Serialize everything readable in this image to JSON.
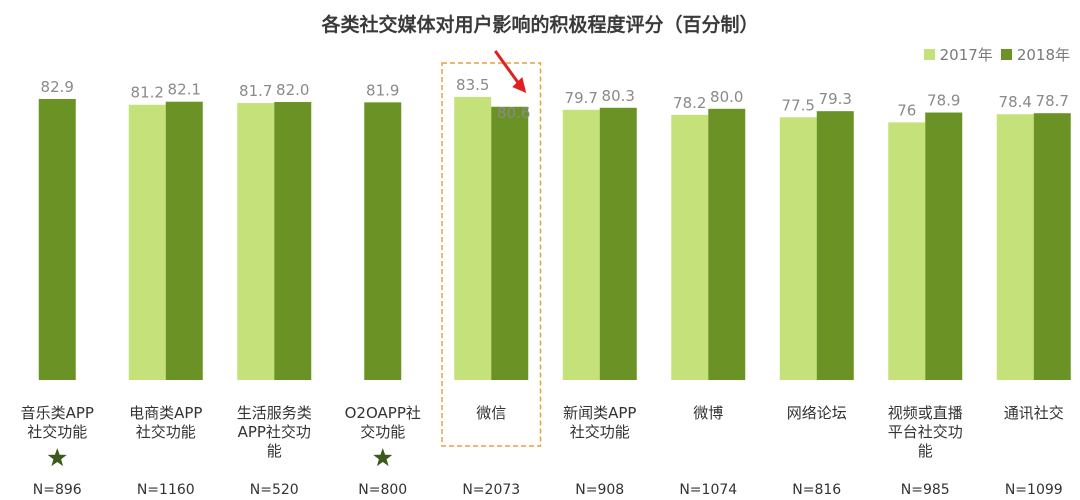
{
  "chart_data": {
    "type": "bar",
    "title": "各类社交媒体对用户影响的积极程度评分（百分制）",
    "xlabel": "",
    "ylabel": "",
    "ylim": [
      0,
      100
    ],
    "grid": false,
    "legend_placement": "top-right",
    "categories": [
      {
        "lines": [
          "音乐类APP",
          "社交功能"
        ],
        "n": "N=896",
        "new_in_2018": true
      },
      {
        "lines": [
          "电商类APP",
          "社交功能"
        ],
        "n": "N=1160",
        "new_in_2018": false
      },
      {
        "lines": [
          "生活服务类",
          "APP社交功",
          "能"
        ],
        "n": "N=520",
        "new_in_2018": false
      },
      {
        "lines": [
          "O2OAPP社",
          "交功能"
        ],
        "n": "N=800",
        "new_in_2018": true
      },
      {
        "lines": [
          "微信"
        ],
        "n": "N=2073",
        "new_in_2018": false,
        "highlighted": true
      },
      {
        "lines": [
          "新闻类APP",
          "社交功能"
        ],
        "n": "N=908",
        "new_in_2018": false
      },
      {
        "lines": [
          "微博"
        ],
        "n": "N=1074",
        "new_in_2018": false
      },
      {
        "lines": [
          "网络论坛"
        ],
        "n": "N=816",
        "new_in_2018": false
      },
      {
        "lines": [
          "视频或直播",
          "平台社交功",
          "能"
        ],
        "n": "N=985",
        "new_in_2018": false
      },
      {
        "lines": [
          "通讯社交"
        ],
        "n": "N=1099",
        "new_in_2018": false
      }
    ],
    "series": [
      {
        "name": "2017年",
        "color": "#c5e17a",
        "values": [
          null,
          81.2,
          81.7,
          null,
          83.5,
          79.7,
          78.2,
          77.5,
          76,
          78.4
        ],
        "labels": [
          null,
          "81.2",
          "81.7",
          null,
          "83.5",
          "79.7",
          "78.2",
          "77.5",
          "76",
          "78.4"
        ]
      },
      {
        "name": "2018年",
        "color": "#6b9224",
        "values": [
          82.9,
          82.1,
          82.0,
          81.9,
          80.6,
          80.3,
          80.0,
          79.3,
          78.9,
          78.7
        ],
        "labels": [
          "82.9",
          "82.1",
          "82.0",
          "81.9",
          "80.6",
          "80.3",
          "80.0",
          "79.3",
          "78.9",
          "78.7"
        ]
      }
    ],
    "colors": {
      "highlight_box": "#e8a040",
      "arrow": "#e02020",
      "star": "#3d5a1c",
      "label_text": "#8a8a8a"
    }
  }
}
